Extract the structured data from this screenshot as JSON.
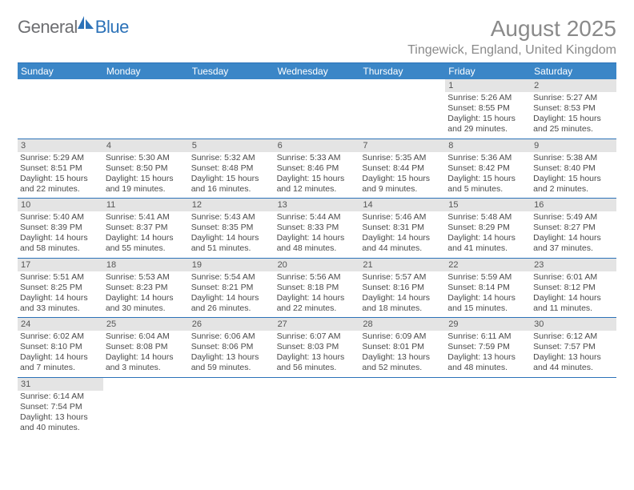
{
  "brand": {
    "part1": "General",
    "part2": "Blue"
  },
  "title": "August 2025",
  "location": "Tingewick, England, United Kingdom",
  "colors": {
    "header_bg": "#3b86c7",
    "header_border": "#2c72b8",
    "daynum_bg": "#e4e4e4",
    "text_gray": "#8a8a8a",
    "body_text": "#4a4a4a"
  },
  "dow": [
    "Sunday",
    "Monday",
    "Tuesday",
    "Wednesday",
    "Thursday",
    "Friday",
    "Saturday"
  ],
  "weeks": [
    [
      null,
      null,
      null,
      null,
      null,
      {
        "n": "1",
        "sr": "Sunrise: 5:26 AM",
        "ss": "Sunset: 8:55 PM",
        "dl": "Daylight: 15 hours and 29 minutes."
      },
      {
        "n": "2",
        "sr": "Sunrise: 5:27 AM",
        "ss": "Sunset: 8:53 PM",
        "dl": "Daylight: 15 hours and 25 minutes."
      }
    ],
    [
      {
        "n": "3",
        "sr": "Sunrise: 5:29 AM",
        "ss": "Sunset: 8:51 PM",
        "dl": "Daylight: 15 hours and 22 minutes."
      },
      {
        "n": "4",
        "sr": "Sunrise: 5:30 AM",
        "ss": "Sunset: 8:50 PM",
        "dl": "Daylight: 15 hours and 19 minutes."
      },
      {
        "n": "5",
        "sr": "Sunrise: 5:32 AM",
        "ss": "Sunset: 8:48 PM",
        "dl": "Daylight: 15 hours and 16 minutes."
      },
      {
        "n": "6",
        "sr": "Sunrise: 5:33 AM",
        "ss": "Sunset: 8:46 PM",
        "dl": "Daylight: 15 hours and 12 minutes."
      },
      {
        "n": "7",
        "sr": "Sunrise: 5:35 AM",
        "ss": "Sunset: 8:44 PM",
        "dl": "Daylight: 15 hours and 9 minutes."
      },
      {
        "n": "8",
        "sr": "Sunrise: 5:36 AM",
        "ss": "Sunset: 8:42 PM",
        "dl": "Daylight: 15 hours and 5 minutes."
      },
      {
        "n": "9",
        "sr": "Sunrise: 5:38 AM",
        "ss": "Sunset: 8:40 PM",
        "dl": "Daylight: 15 hours and 2 minutes."
      }
    ],
    [
      {
        "n": "10",
        "sr": "Sunrise: 5:40 AM",
        "ss": "Sunset: 8:39 PM",
        "dl": "Daylight: 14 hours and 58 minutes."
      },
      {
        "n": "11",
        "sr": "Sunrise: 5:41 AM",
        "ss": "Sunset: 8:37 PM",
        "dl": "Daylight: 14 hours and 55 minutes."
      },
      {
        "n": "12",
        "sr": "Sunrise: 5:43 AM",
        "ss": "Sunset: 8:35 PM",
        "dl": "Daylight: 14 hours and 51 minutes."
      },
      {
        "n": "13",
        "sr": "Sunrise: 5:44 AM",
        "ss": "Sunset: 8:33 PM",
        "dl": "Daylight: 14 hours and 48 minutes."
      },
      {
        "n": "14",
        "sr": "Sunrise: 5:46 AM",
        "ss": "Sunset: 8:31 PM",
        "dl": "Daylight: 14 hours and 44 minutes."
      },
      {
        "n": "15",
        "sr": "Sunrise: 5:48 AM",
        "ss": "Sunset: 8:29 PM",
        "dl": "Daylight: 14 hours and 41 minutes."
      },
      {
        "n": "16",
        "sr": "Sunrise: 5:49 AM",
        "ss": "Sunset: 8:27 PM",
        "dl": "Daylight: 14 hours and 37 minutes."
      }
    ],
    [
      {
        "n": "17",
        "sr": "Sunrise: 5:51 AM",
        "ss": "Sunset: 8:25 PM",
        "dl": "Daylight: 14 hours and 33 minutes."
      },
      {
        "n": "18",
        "sr": "Sunrise: 5:53 AM",
        "ss": "Sunset: 8:23 PM",
        "dl": "Daylight: 14 hours and 30 minutes."
      },
      {
        "n": "19",
        "sr": "Sunrise: 5:54 AM",
        "ss": "Sunset: 8:21 PM",
        "dl": "Daylight: 14 hours and 26 minutes."
      },
      {
        "n": "20",
        "sr": "Sunrise: 5:56 AM",
        "ss": "Sunset: 8:18 PM",
        "dl": "Daylight: 14 hours and 22 minutes."
      },
      {
        "n": "21",
        "sr": "Sunrise: 5:57 AM",
        "ss": "Sunset: 8:16 PM",
        "dl": "Daylight: 14 hours and 18 minutes."
      },
      {
        "n": "22",
        "sr": "Sunrise: 5:59 AM",
        "ss": "Sunset: 8:14 PM",
        "dl": "Daylight: 14 hours and 15 minutes."
      },
      {
        "n": "23",
        "sr": "Sunrise: 6:01 AM",
        "ss": "Sunset: 8:12 PM",
        "dl": "Daylight: 14 hours and 11 minutes."
      }
    ],
    [
      {
        "n": "24",
        "sr": "Sunrise: 6:02 AM",
        "ss": "Sunset: 8:10 PM",
        "dl": "Daylight: 14 hours and 7 minutes."
      },
      {
        "n": "25",
        "sr": "Sunrise: 6:04 AM",
        "ss": "Sunset: 8:08 PM",
        "dl": "Daylight: 14 hours and 3 minutes."
      },
      {
        "n": "26",
        "sr": "Sunrise: 6:06 AM",
        "ss": "Sunset: 8:06 PM",
        "dl": "Daylight: 13 hours and 59 minutes."
      },
      {
        "n": "27",
        "sr": "Sunrise: 6:07 AM",
        "ss": "Sunset: 8:03 PM",
        "dl": "Daylight: 13 hours and 56 minutes."
      },
      {
        "n": "28",
        "sr": "Sunrise: 6:09 AM",
        "ss": "Sunset: 8:01 PM",
        "dl": "Daylight: 13 hours and 52 minutes."
      },
      {
        "n": "29",
        "sr": "Sunrise: 6:11 AM",
        "ss": "Sunset: 7:59 PM",
        "dl": "Daylight: 13 hours and 48 minutes."
      },
      {
        "n": "30",
        "sr": "Sunrise: 6:12 AM",
        "ss": "Sunset: 7:57 PM",
        "dl": "Daylight: 13 hours and 44 minutes."
      }
    ],
    [
      {
        "n": "31",
        "sr": "Sunrise: 6:14 AM",
        "ss": "Sunset: 7:54 PM",
        "dl": "Daylight: 13 hours and 40 minutes."
      },
      null,
      null,
      null,
      null,
      null,
      null
    ]
  ]
}
